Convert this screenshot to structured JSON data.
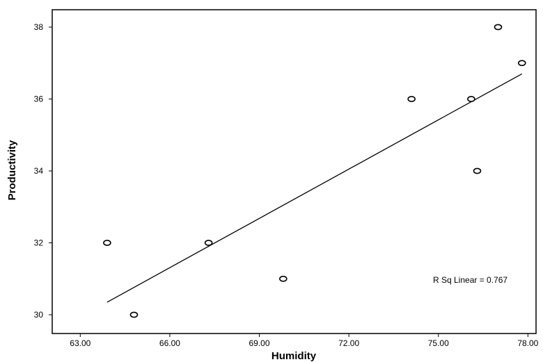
{
  "chart_data": {
    "type": "scatter",
    "title": "",
    "xlabel": "Humidity",
    "ylabel": "Productivity",
    "xlim": [
      62.0,
      78.5
    ],
    "ylim": [
      29.8,
      38.4
    ],
    "xticks": [
      "63.00",
      "66.00",
      "69.00",
      "72.00",
      "75.00",
      "78.00"
    ],
    "yticks": [
      "30",
      "32",
      "34",
      "36",
      "38"
    ],
    "grid": false,
    "points": [
      {
        "x": 63.9,
        "y": 32
      },
      {
        "x": 64.8,
        "y": 30
      },
      {
        "x": 67.3,
        "y": 32
      },
      {
        "x": 69.8,
        "y": 31
      },
      {
        "x": 74.1,
        "y": 36
      },
      {
        "x": 76.1,
        "y": 36
      },
      {
        "x": 76.3,
        "y": 34
      },
      {
        "x": 77.0,
        "y": 38
      },
      {
        "x": 77.8,
        "y": 37
      }
    ],
    "fit_line": {
      "x": [
        63.9,
        77.8
      ],
      "y": [
        30.35,
        36.7
      ]
    },
    "annotation": "R Sq Linear = 0.767"
  }
}
